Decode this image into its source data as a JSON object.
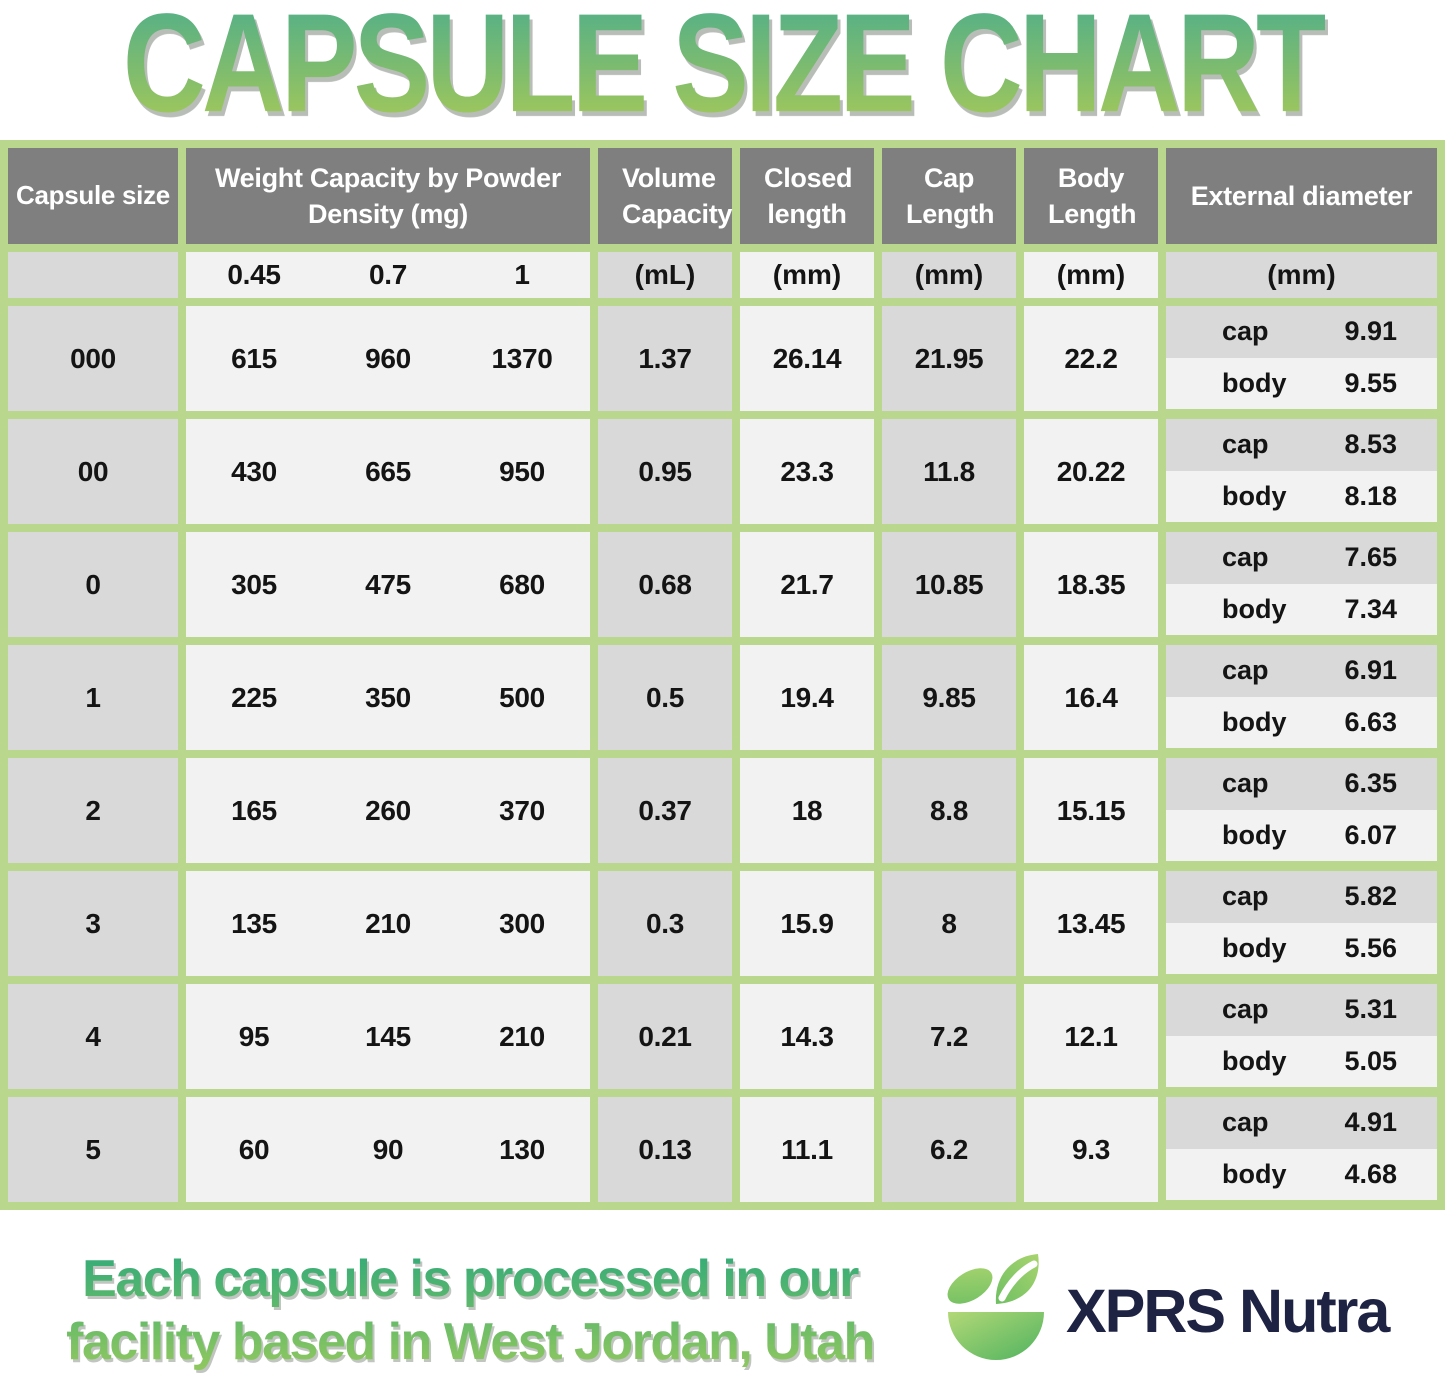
{
  "title": "CAPSULE SIZE CHART",
  "colors": {
    "border_green": "#b9d88e",
    "header_gray": "#7f7f7f",
    "cell_gray": "#d9d9d9",
    "cell_light": "#f2f2f2",
    "title_gradient_top": "#55b087",
    "title_gradient_bottom": "#a6ca58",
    "brand_navy": "#1e2243",
    "logo_green_light": "#a9d36a",
    "logo_green_dark": "#55b45e"
  },
  "chart_data": {
    "type": "table",
    "title": "CAPSULE SIZE CHART",
    "headers": {
      "capsule_size": "Capsule size",
      "weight": "Weight Capacity by Powder Density (mg)",
      "volume": "Volume Capacity",
      "closed": "Closed length",
      "cap": "Cap Length",
      "body": "Body Length",
      "external": "External diameter"
    },
    "units": {
      "densities": [
        "0.45",
        "0.7",
        "1"
      ],
      "volume": "(mL)",
      "closed": "(mm)",
      "cap": "(mm)",
      "body": "(mm)",
      "external": "(mm)"
    },
    "external_row_labels": {
      "cap": "cap",
      "body": "body"
    },
    "rows": [
      {
        "size": "000",
        "w045": "615",
        "w07": "960",
        "w1": "1370",
        "volume": "1.37",
        "closed": "26.14",
        "cap_length": "21.95",
        "body_length": "22.2",
        "ext_cap": "9.91",
        "ext_body": "9.55"
      },
      {
        "size": "00",
        "w045": "430",
        "w07": "665",
        "w1": "950",
        "volume": "0.95",
        "closed": "23.3",
        "cap_length": "11.8",
        "body_length": "20.22",
        "ext_cap": "8.53",
        "ext_body": "8.18"
      },
      {
        "size": "0",
        "w045": "305",
        "w07": "475",
        "w1": "680",
        "volume": "0.68",
        "closed": "21.7",
        "cap_length": "10.85",
        "body_length": "18.35",
        "ext_cap": "7.65",
        "ext_body": "7.34"
      },
      {
        "size": "1",
        "w045": "225",
        "w07": "350",
        "w1": "500",
        "volume": "0.5",
        "closed": "19.4",
        "cap_length": "9.85",
        "body_length": "16.4",
        "ext_cap": "6.91",
        "ext_body": "6.63"
      },
      {
        "size": "2",
        "w045": "165",
        "w07": "260",
        "w1": "370",
        "volume": "0.37",
        "closed": "18",
        "cap_length": "8.8",
        "body_length": "15.15",
        "ext_cap": "6.35",
        "ext_body": "6.07"
      },
      {
        "size": "3",
        "w045": "135",
        "w07": "210",
        "w1": "300",
        "volume": "0.3",
        "closed": "15.9",
        "cap_length": "8",
        "body_length": "13.45",
        "ext_cap": "5.82",
        "ext_body": "5.56"
      },
      {
        "size": "4",
        "w045": "95",
        "w07": "145",
        "w1": "210",
        "volume": "0.21",
        "closed": "14.3",
        "cap_length": "7.2",
        "body_length": "12.1",
        "ext_cap": "5.31",
        "ext_body": "5.05"
      },
      {
        "size": "5",
        "w045": "60",
        "w07": "90",
        "w1": "130",
        "volume": "0.13",
        "closed": "11.1",
        "cap_length": "6.2",
        "body_length": "9.3",
        "ext_cap": "4.91",
        "ext_body": "4.68"
      }
    ]
  },
  "footer": {
    "line1": "Each capsule is processed in our",
    "line2": "facility based in West Jordan, Utah",
    "brand": "XPRS Nutra"
  }
}
